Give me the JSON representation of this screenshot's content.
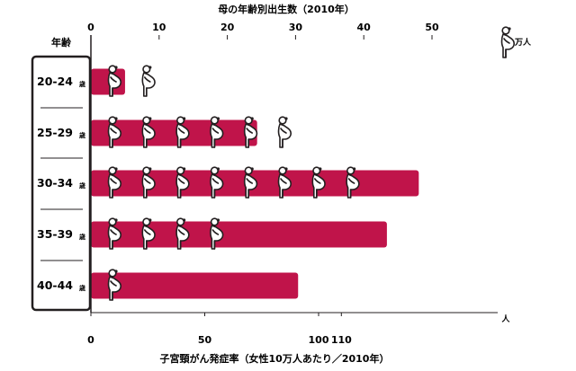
{
  "chart_data": {
    "type": "bar",
    "top_title": "母の年齢別出生数（2010年）",
    "top_unit": "万人",
    "top_ticks": [
      0,
      10,
      20,
      30,
      40,
      50
    ],
    "bottom_title": "子宮頸がん発症率（女性10万人あたり／2010年）",
    "bottom_unit": "人",
    "bottom_ticks": [
      0,
      50,
      100,
      110
    ],
    "age_header": "年齢",
    "categories": [
      "20-24",
      "25-29",
      "30-34",
      "35-39",
      "40-44"
    ],
    "age_suffix": "歳",
    "series": [
      {
        "values": [
          15,
          73,
          144,
          130,
          91
        ]
      },
      {
        "values": [
          10,
          30,
          40,
          20,
          3
        ]
      }
    ],
    "bar_color": "#c0144a"
  }
}
